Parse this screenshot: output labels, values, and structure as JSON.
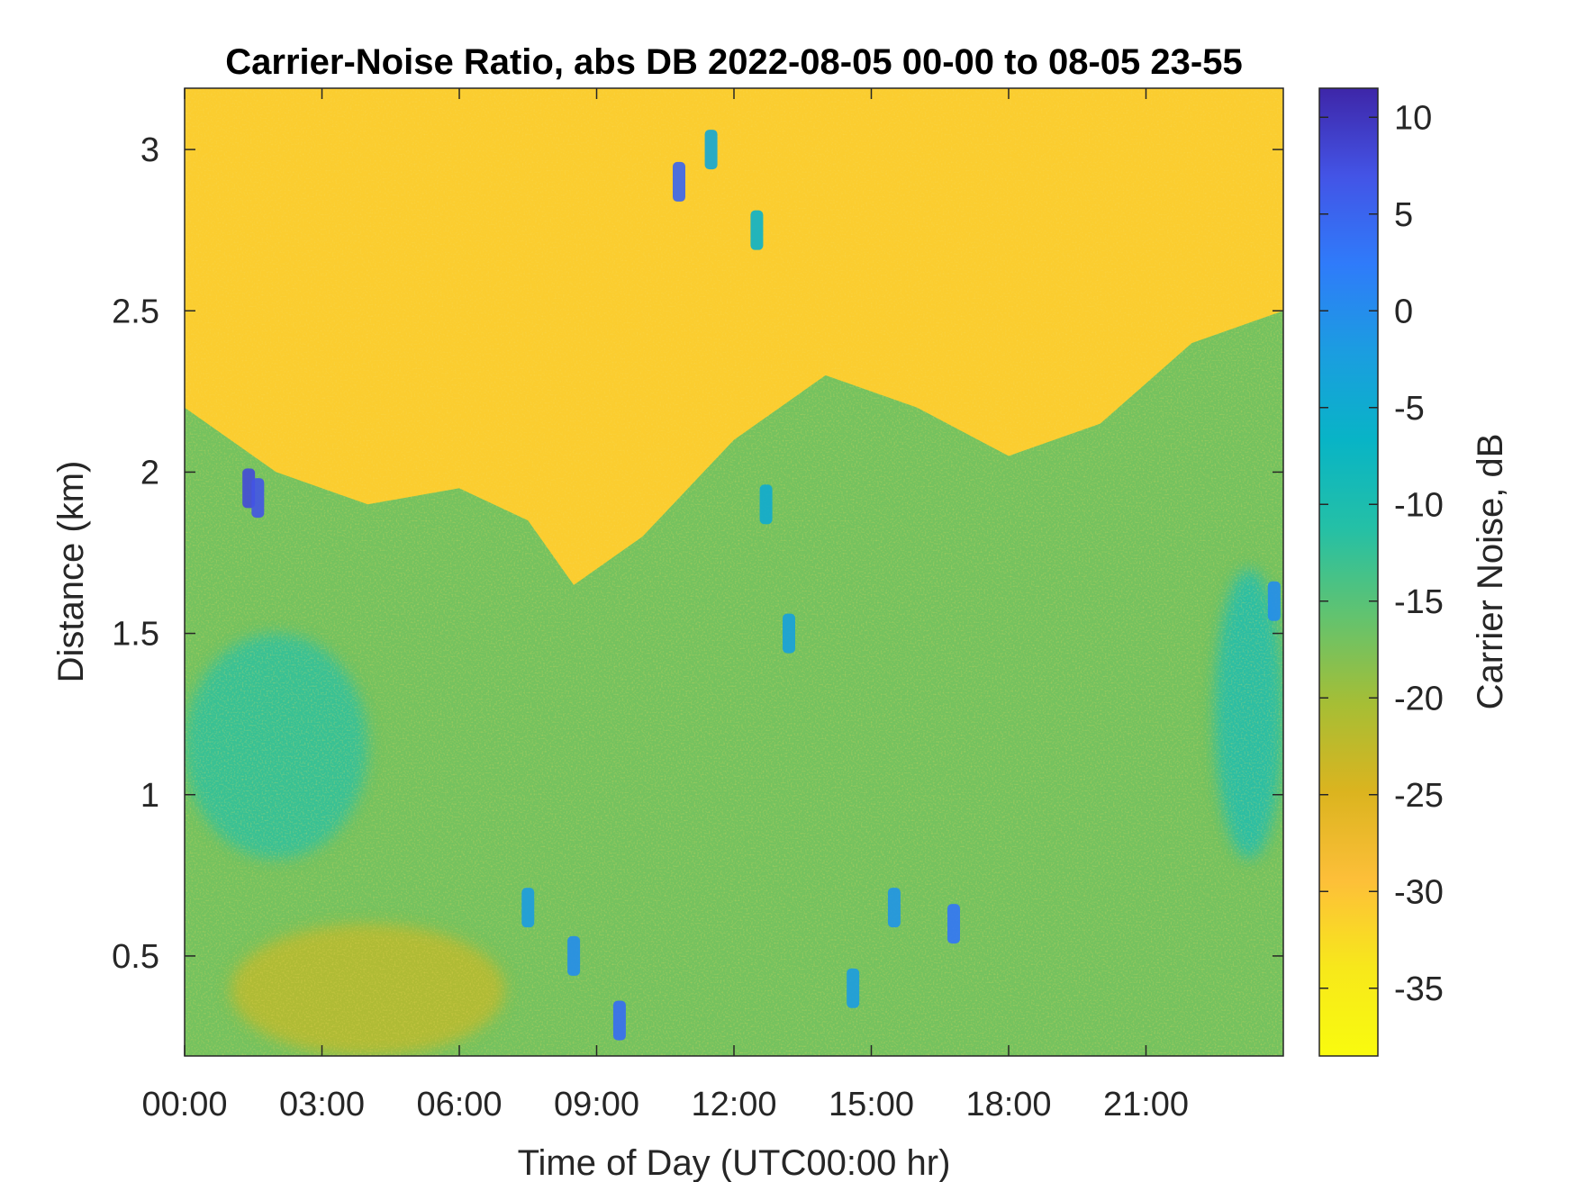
{
  "chart_data": {
    "type": "heatmap",
    "title": "Carrier-Noise Ratio, abs DB 2022-08-05 00-00 to 08-05 23-55",
    "xlabel": "Time of Day (UTC00:00 hr)",
    "ylabel": "Distance (km)",
    "colorbar_label": "Carrier Noise, dB",
    "xlim": [
      0,
      24
    ],
    "ylim": [
      0.19,
      3.19
    ],
    "clim": [
      -38.5,
      11.5
    ],
    "x_ticks": [
      {
        "value": 0,
        "label": "00:00"
      },
      {
        "value": 3,
        "label": "03:00"
      },
      {
        "value": 6,
        "label": "06:00"
      },
      {
        "value": 9,
        "label": "09:00"
      },
      {
        "value": 12,
        "label": "12:00"
      },
      {
        "value": 15,
        "label": "15:00"
      },
      {
        "value": 18,
        "label": "18:00"
      },
      {
        "value": 21,
        "label": "21:00"
      }
    ],
    "y_ticks": [
      {
        "value": 0.5,
        "label": "0.5"
      },
      {
        "value": 1,
        "label": "1"
      },
      {
        "value": 1.5,
        "label": "1.5"
      },
      {
        "value": 2,
        "label": "2"
      },
      {
        "value": 2.5,
        "label": "2.5"
      },
      {
        "value": 3,
        "label": "3"
      }
    ],
    "colorbar_ticks": [
      {
        "value": 10,
        "label": "10"
      },
      {
        "value": 5,
        "label": "5"
      },
      {
        "value": 0,
        "label": "0"
      },
      {
        "value": -5,
        "label": "-5"
      },
      {
        "value": -10,
        "label": "-10"
      },
      {
        "value": -15,
        "label": "-15"
      },
      {
        "value": -20,
        "label": "-20"
      },
      {
        "value": -25,
        "label": "-25"
      },
      {
        "value": -30,
        "label": "-30"
      },
      {
        "value": -35,
        "label": "-35"
      }
    ],
    "colormap": "parula",
    "colormap_stops": [
      "#3e26a8",
      "#4354e6",
      "#2f7bfa",
      "#1b9de0",
      "#08b4c6",
      "#24c0a6",
      "#62c36f",
      "#a6be35",
      "#dbb41f",
      "#fdbf39",
      "#f7e81b",
      "#f9fb0e"
    ],
    "boundary_layer_top_km": [
      {
        "t": 0,
        "km": 2.2
      },
      {
        "t": 2,
        "km": 2.0
      },
      {
        "t": 4,
        "km": 1.9
      },
      {
        "t": 6,
        "km": 1.95
      },
      {
        "t": 7.5,
        "km": 1.85
      },
      {
        "t": 8.5,
        "km": 1.65
      },
      {
        "t": 10,
        "km": 1.8
      },
      {
        "t": 12,
        "km": 2.1
      },
      {
        "t": 14,
        "km": 2.3
      },
      {
        "t": 16,
        "km": 2.2
      },
      {
        "t": 18,
        "km": 2.05
      },
      {
        "t": 20,
        "km": 2.15
      },
      {
        "t": 22,
        "km": 2.4
      },
      {
        "t": 24,
        "km": 2.5
      }
    ],
    "regions": [
      {
        "region": "upper atmosphere",
        "t_range": [
          0,
          24
        ],
        "km_range": [
          2.0,
          3.19
        ],
        "cnr_db": -31
      },
      {
        "region": "boundary layer",
        "t_range": [
          0,
          24
        ],
        "km_range": [
          0.19,
          1.9
        ],
        "cnr_db": -17
      },
      {
        "region": "near-surface",
        "t_range": [
          1,
          7
        ],
        "km_range": [
          0.19,
          0.6
        ],
        "cnr_db": -22
      },
      {
        "region": "morning core",
        "t_range": [
          0,
          4
        ],
        "km_range": [
          0.8,
          1.5
        ],
        "cnr_db": -12
      },
      {
        "region": "late-evening plume",
        "t_range": [
          22.5,
          24
        ],
        "km_range": [
          0.8,
          1.7
        ],
        "cnr_db": -10
      }
    ],
    "features": [
      {
        "t": 1.4,
        "km": 1.95,
        "cnr_db": 8
      },
      {
        "t": 1.6,
        "km": 1.92,
        "cnr_db": 7
      },
      {
        "t": 7.5,
        "km": 0.65,
        "cnr_db": -2
      },
      {
        "t": 8.5,
        "km": 0.5,
        "cnr_db": 0
      },
      {
        "t": 9.5,
        "km": 0.3,
        "cnr_db": 4
      },
      {
        "t": 10.8,
        "km": 2.9,
        "cnr_db": 5
      },
      {
        "t": 11.5,
        "km": 3.0,
        "cnr_db": -4
      },
      {
        "t": 12.5,
        "km": 2.75,
        "cnr_db": -6
      },
      {
        "t": 12.7,
        "km": 1.9,
        "cnr_db": -5
      },
      {
        "t": 13.2,
        "km": 1.5,
        "cnr_db": -3
      },
      {
        "t": 14.6,
        "km": 0.4,
        "cnr_db": -2
      },
      {
        "t": 15.5,
        "km": 0.65,
        "cnr_db": -1
      },
      {
        "t": 16.8,
        "km": 0.6,
        "cnr_db": 3
      },
      {
        "t": 23.8,
        "km": 1.6,
        "cnr_db": 0
      }
    ]
  }
}
